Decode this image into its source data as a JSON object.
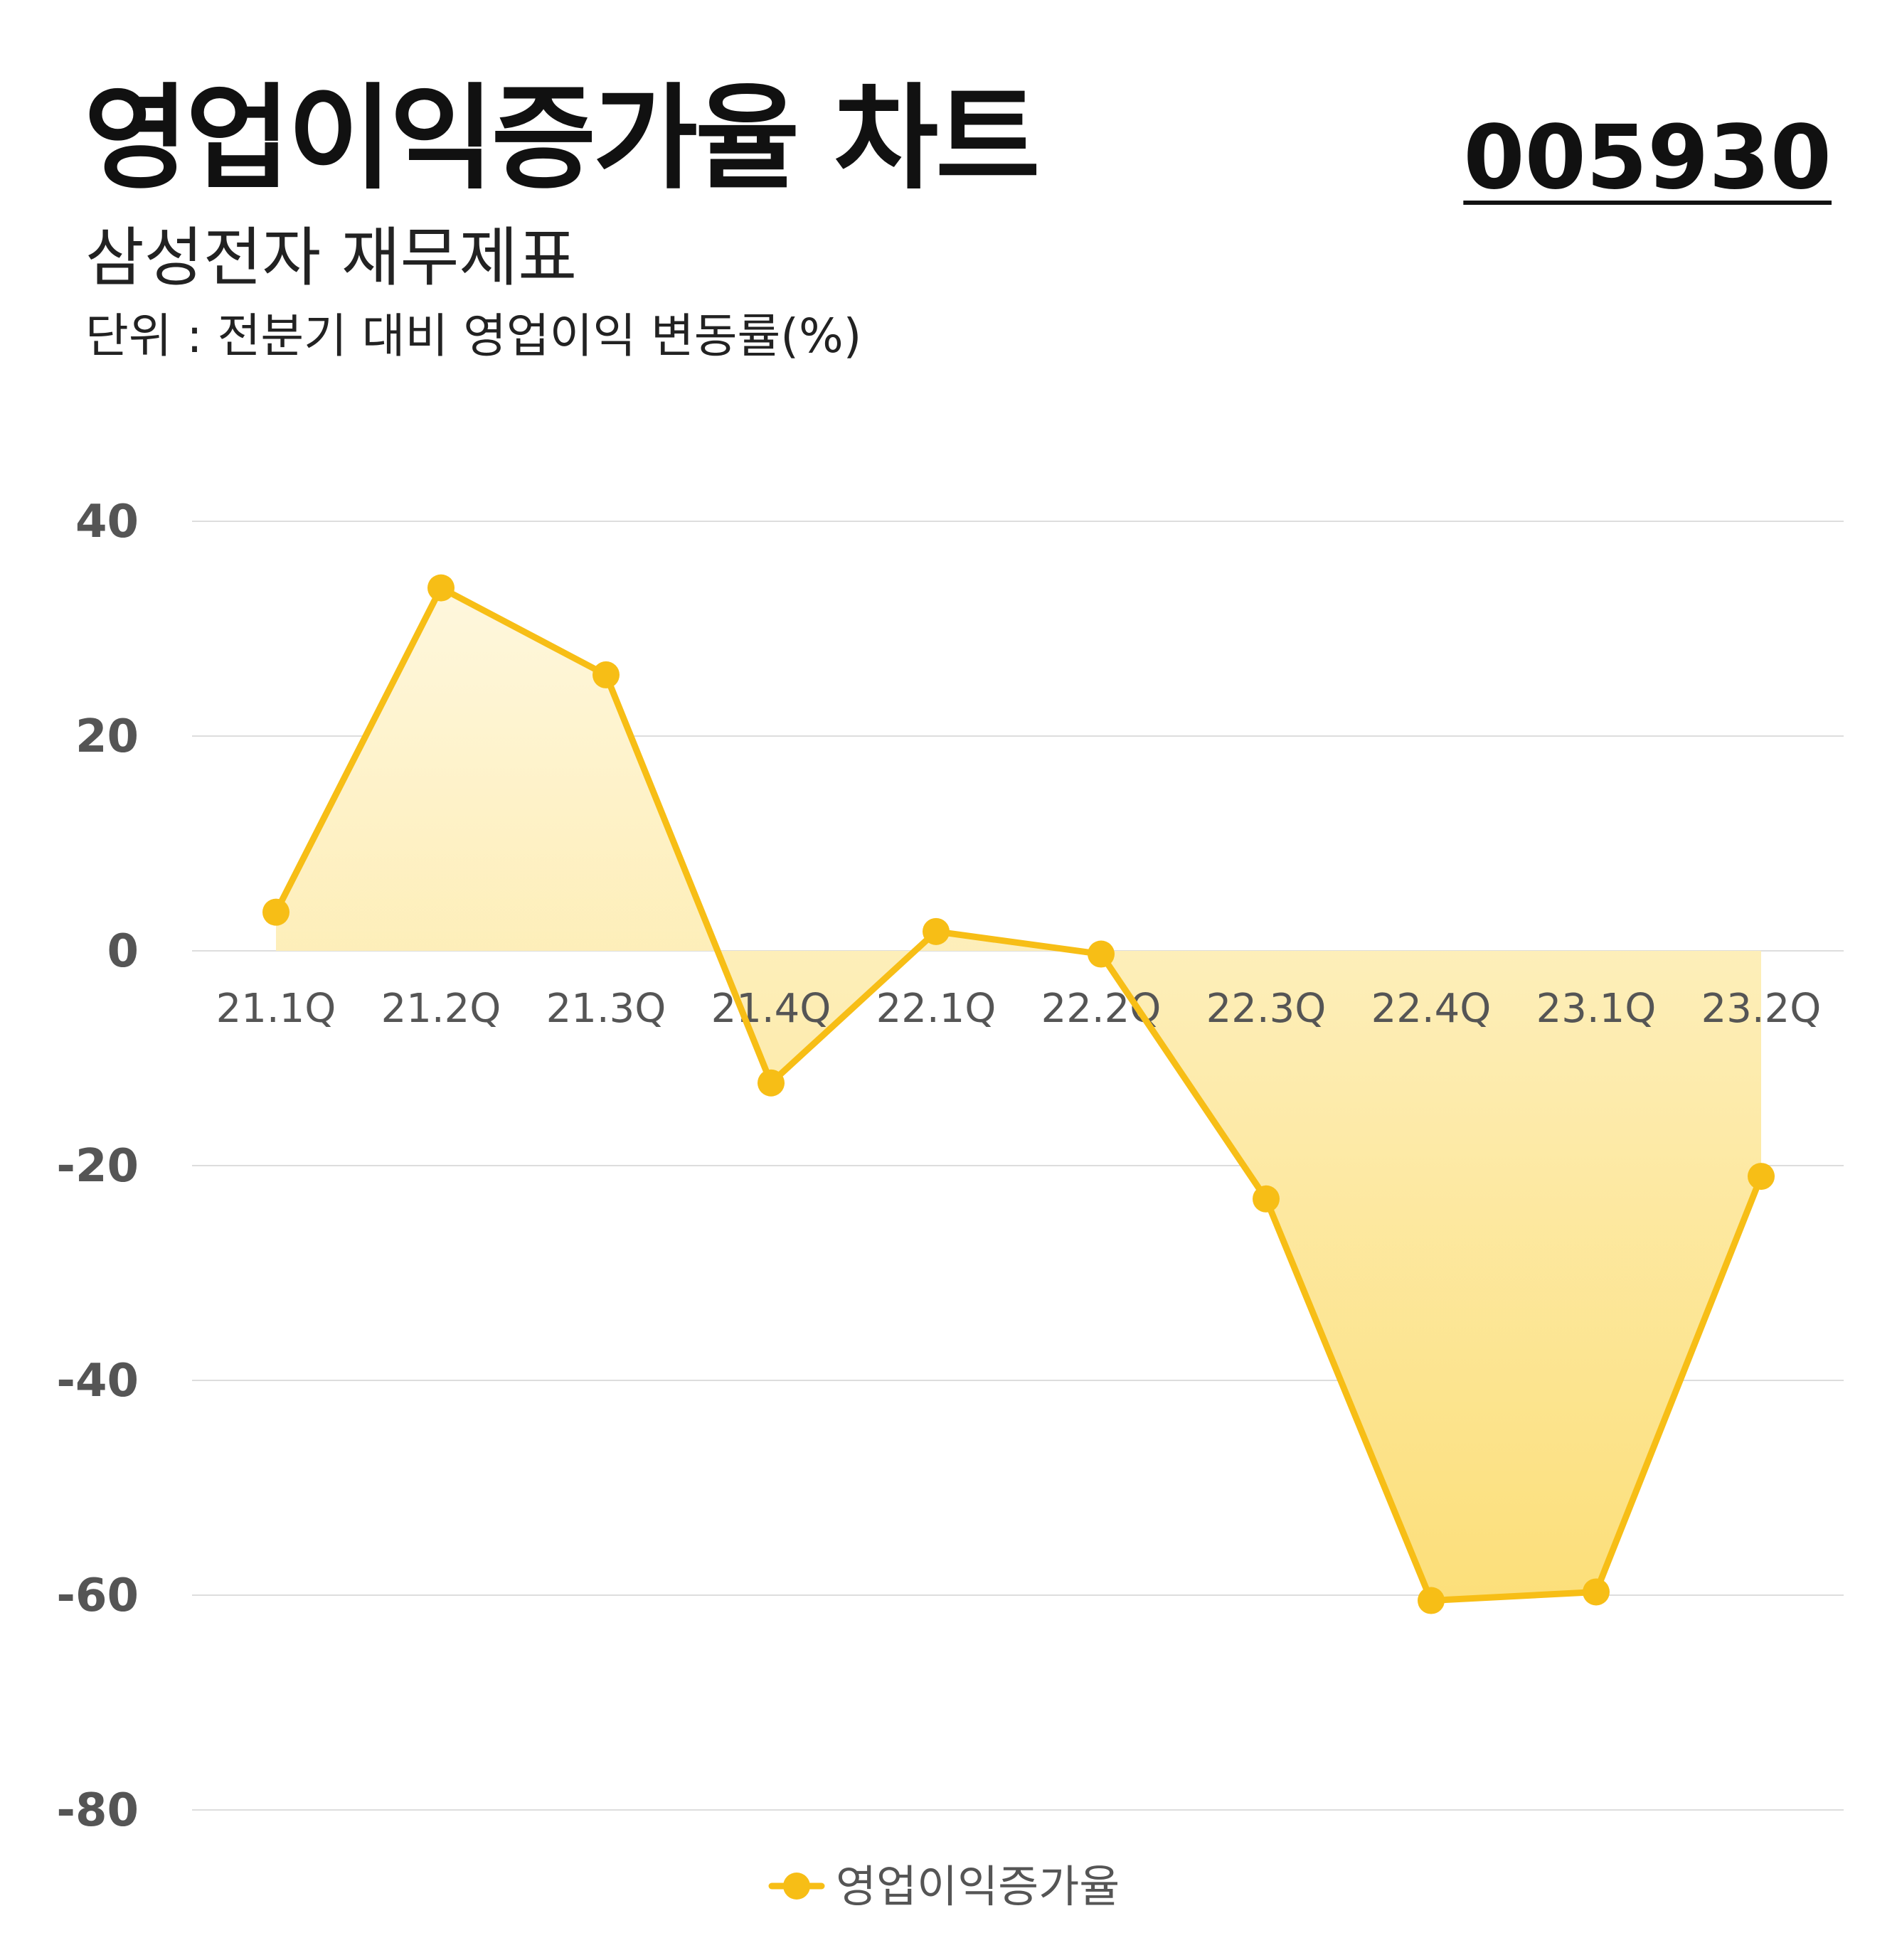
{
  "header": {
    "title": "영업이익증가율 차트",
    "ticker": "005930",
    "subtitle": "삼성전자 재무제표",
    "unit": "단위 : 전분기 대비 영업이익 변동률(%)"
  },
  "colors": {
    "line": "#F7BE16",
    "fill_top": "#FEF7DD",
    "fill_bottom": "#FCDF7A",
    "grid": "#DDDDDD",
    "tick_text": "#555555"
  },
  "chart_data": {
    "type": "area",
    "title": "",
    "xlabel": "",
    "ylabel": "",
    "categories": [
      "21.1Q",
      "21.2Q",
      "21.3Q",
      "21.4Q",
      "22.1Q",
      "22.2Q",
      "22.3Q",
      "22.4Q",
      "23.1Q",
      "23.2Q"
    ],
    "series": [
      {
        "name": "영업이익증가율",
        "values": [
          3.6,
          33.8,
          25.7,
          -12.3,
          1.8,
          -0.3,
          -23.1,
          -60.5,
          -59.7,
          -21.0
        ]
      }
    ],
    "ylim": [
      -80,
      40
    ],
    "yticks": [
      40,
      20,
      0,
      -20,
      -40,
      -60,
      -80
    ],
    "grid": true,
    "legend": "bottom-center"
  }
}
